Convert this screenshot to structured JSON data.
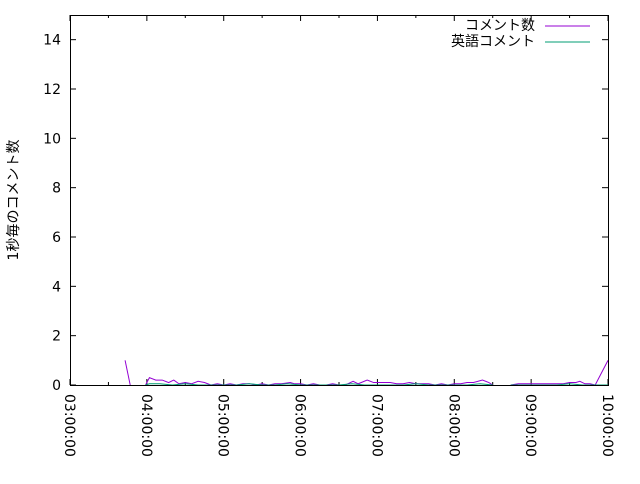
{
  "chart_data": {
    "type": "line",
    "title": "",
    "xlabel": "",
    "ylabel": "1秒毎のコメント数",
    "xlim": [
      "03:00:00",
      "10:00:00"
    ],
    "ylim": [
      0,
      15
    ],
    "yticks": [
      "0",
      "2",
      "4",
      "6",
      "8",
      "10",
      "12",
      "14"
    ],
    "xticks": [
      "03:00:00",
      "04:00:00",
      "05:00:00",
      "06:00:00",
      "07:00:00",
      "08:00:00",
      "09:00:00",
      "10:00:00"
    ],
    "grid": false,
    "legend": "top-right",
    "series": [
      {
        "name": "コメント数",
        "color": "#9400d3",
        "points": [
          [
            "03:43",
            1
          ],
          [
            "03:47",
            0
          ],
          null,
          [
            "03:59",
            0
          ],
          [
            "04:02",
            0.3
          ],
          [
            "04:07",
            0.2
          ],
          [
            "04:12",
            0.2
          ],
          [
            "04:17",
            0.1
          ],
          [
            "04:21",
            0.2
          ],
          [
            "04:25",
            0.05
          ],
          [
            "04:30",
            0.1
          ],
          [
            "04:35",
            0.05
          ],
          [
            "04:40",
            0.15
          ],
          [
            "04:45",
            0.1
          ],
          [
            "04:50",
            0
          ],
          [
            "04:55",
            0.05
          ],
          [
            "05:00",
            0
          ],
          [
            "05:05",
            0.05
          ],
          [
            "05:10",
            0
          ],
          [
            "05:15",
            0.05
          ],
          [
            "05:20",
            0.05
          ],
          [
            "05:25",
            0
          ],
          [
            "05:30",
            0.05
          ],
          [
            "05:35",
            0
          ],
          [
            "05:40",
            0.05
          ],
          [
            "05:45",
            0.05
          ],
          [
            "05:52",
            0.1
          ],
          [
            "05:55",
            0.05
          ],
          [
            "06:00",
            0.05
          ],
          [
            "06:05",
            0
          ],
          [
            "06:10",
            0.05
          ],
          [
            "06:15",
            0
          ],
          [
            "06:20",
            0
          ],
          [
            "06:25",
            0.05
          ],
          [
            "06:30",
            0
          ],
          [
            "06:35",
            0
          ],
          [
            "06:41",
            0.15
          ],
          [
            "06:45",
            0.05
          ],
          [
            "06:52",
            0.2
          ],
          [
            "06:57",
            0.1
          ],
          [
            "07:00",
            0.1
          ],
          [
            "07:05",
            0.1
          ],
          [
            "07:10",
            0.1
          ],
          [
            "07:15",
            0.05
          ],
          [
            "07:20",
            0.05
          ],
          [
            "07:25",
            0.1
          ],
          [
            "07:30",
            0.05
          ],
          [
            "07:35",
            0.05
          ],
          [
            "07:40",
            0.05
          ],
          [
            "07:45",
            0
          ],
          [
            "07:50",
            0.05
          ],
          [
            "07:55",
            0
          ],
          [
            "08:00",
            0.05
          ],
          [
            "08:05",
            0.05
          ],
          [
            "08:10",
            0.1
          ],
          [
            "08:15",
            0.1
          ],
          [
            "08:22",
            0.2
          ],
          [
            "08:27",
            0.1
          ],
          [
            "08:30",
            0
          ],
          null,
          [
            "08:44",
            0
          ],
          [
            "08:50",
            0.05
          ],
          [
            "08:55",
            0.05
          ],
          [
            "09:00",
            0.05
          ],
          [
            "09:05",
            0.05
          ],
          [
            "09:10",
            0.05
          ],
          [
            "09:15",
            0.05
          ],
          [
            "09:20",
            0.05
          ],
          [
            "09:25",
            0.05
          ],
          [
            "09:30",
            0.1
          ],
          [
            "09:35",
            0.1
          ],
          [
            "09:38",
            0.15
          ],
          [
            "09:42",
            0.05
          ],
          [
            "09:46",
            0.05
          ],
          [
            "09:50",
            0
          ],
          [
            "10:00",
            1
          ]
        ]
      },
      {
        "name": "英語コメント",
        "color": "#009e73",
        "points": [
          [
            "03:59",
            0
          ],
          [
            "04:02",
            0.05
          ],
          [
            "04:10",
            0.05
          ],
          [
            "04:20",
            0
          ],
          [
            "04:30",
            0.05
          ],
          [
            "04:40",
            0
          ],
          [
            "04:50",
            0
          ],
          [
            "05:00",
            0
          ],
          [
            "05:10",
            0
          ],
          [
            "05:20",
            0.05
          ],
          [
            "05:30",
            0
          ],
          [
            "05:40",
            0
          ],
          [
            "05:50",
            0.05
          ],
          [
            "06:00",
            0
          ],
          [
            "06:10",
            0
          ],
          [
            "06:20",
            0
          ],
          [
            "06:30",
            0
          ],
          [
            "06:40",
            0.05
          ],
          [
            "06:50",
            0
          ],
          [
            "07:00",
            0
          ],
          [
            "07:10",
            0
          ],
          [
            "07:20",
            0
          ],
          [
            "07:30",
            0.05
          ],
          [
            "07:40",
            0
          ],
          [
            "07:50",
            0
          ],
          [
            "08:00",
            0
          ],
          [
            "08:10",
            0
          ],
          [
            "08:20",
            0.05
          ],
          [
            "08:30",
            0
          ],
          null,
          [
            "08:44",
            0
          ],
          [
            "08:50",
            0
          ],
          [
            "09:00",
            0
          ],
          [
            "09:10",
            0
          ],
          [
            "09:20",
            0
          ],
          [
            "09:30",
            0.05
          ],
          [
            "09:40",
            0
          ],
          [
            "09:50",
            0
          ],
          [
            "10:00",
            0
          ]
        ]
      }
    ]
  }
}
